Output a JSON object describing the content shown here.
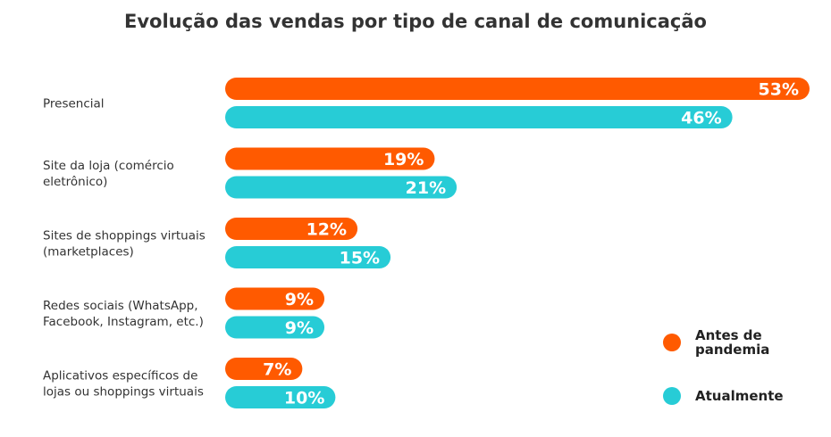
{
  "chart_data": {
    "type": "bar",
    "orientation": "horizontal",
    "title": "Evolução das vendas por tipo de canal de comunicação",
    "categories": [
      [
        "Presencial"
      ],
      [
        "Site da loja (comércio",
        "eletrônico)"
      ],
      [
        "Sites de shoppings virtuais",
        "(marketplaces)"
      ],
      [
        "Redes sociais (WhatsApp,",
        "Facebook, Instagram, etc.)"
      ],
      [
        "Aplicativos específicos de",
        "lojas ou shoppings virtuais"
      ]
    ],
    "series": [
      {
        "name": "Antes de pandemia",
        "color": "#ff5a00",
        "values": [
          53,
          19,
          12,
          9,
          7
        ],
        "labels": [
          "53%",
          "19%",
          "12%",
          "9%",
          "7%"
        ]
      },
      {
        "name": "Atualmente",
        "color": "#27ccd6",
        "values": [
          46,
          21,
          15,
          9,
          10
        ],
        "labels": [
          "46%",
          "21%",
          "15%",
          "9%",
          "10%"
        ]
      }
    ],
    "unit": "%",
    "xlim": [
      0,
      53
    ],
    "grid": false,
    "legend_position": "bottom-right"
  }
}
